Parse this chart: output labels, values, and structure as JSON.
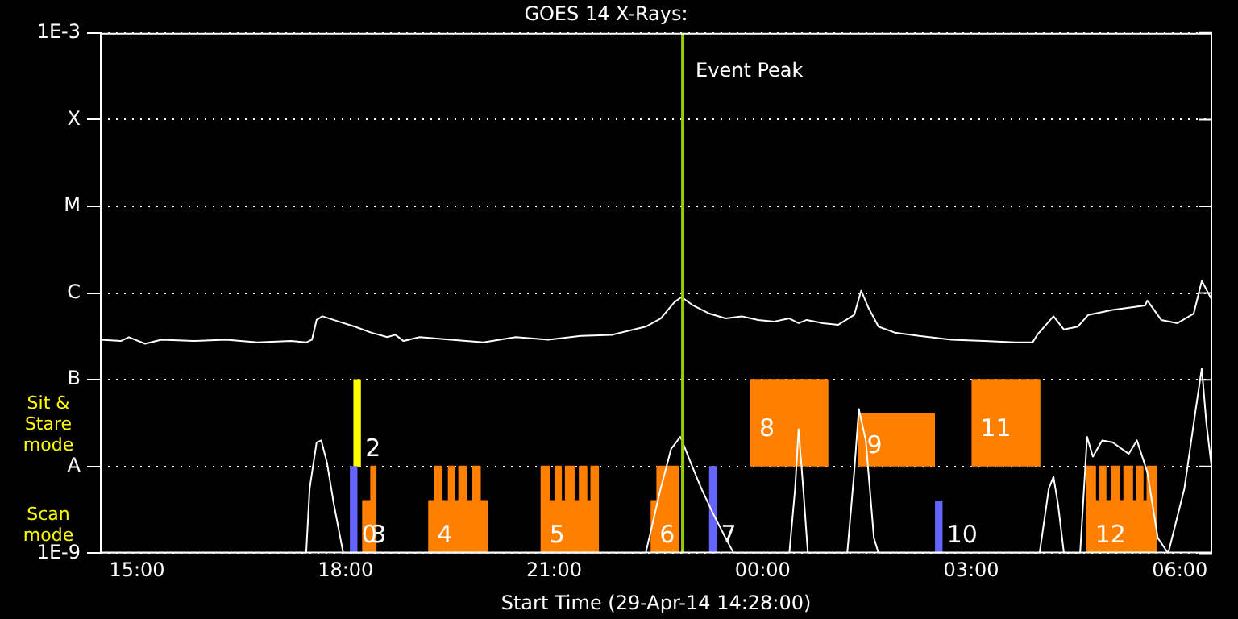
{
  "chart_data": {
    "type": "line",
    "title": "GOES 14 X-Rays:",
    "xlabel": "Start Time (29-Apr-14 14:28:00)",
    "xlim": [
      "--04-29T14:28",
      "--04-30T06:28"
    ],
    "xticks": [
      {
        "value": "--04-29T15:00",
        "label": "15:00"
      },
      {
        "value": "--04-29T18:00",
        "label": "18:00"
      },
      {
        "value": "--04-29T21:00",
        "label": "21:00"
      },
      {
        "value": "--04-30T00:00",
        "label": "00:00"
      },
      {
        "value": "--04-30T03:00",
        "label": "03:00"
      },
      {
        "value": "--04-30T06:00",
        "label": "06:00"
      }
    ],
    "ylim": [
      1e-09,
      0.001
    ],
    "yticks": [
      {
        "value": 1e-09,
        "label": "1E-9"
      },
      {
        "value": 1e-08,
        "label": "A"
      },
      {
        "value": 1e-07,
        "label": "B"
      },
      {
        "value": 1e-06,
        "label": "C"
      },
      {
        "value": 1e-05,
        "label": "M"
      },
      {
        "value": 0.0001,
        "label": "X"
      },
      {
        "value": 0.001,
        "label": "1E-3"
      }
    ],
    "log": true,
    "grid": "y",
    "series": [
      {
        "color": "#ffffff",
        "x": [
          "--04-29T14:28",
          "--04-29T14:46",
          "--04-29T14:53",
          "--04-29T15:07",
          "--04-29T15:21",
          "--04-29T15:49",
          "--04-29T16:17",
          "--04-29T16:44",
          "--04-29T17:13",
          "--04-29T17:26",
          "--04-29T17:31",
          "--04-29T17:35",
          "--04-29T17:40",
          "--04-29T17:54",
          "--04-29T18:08",
          "--04-29T18:22",
          "--04-29T18:36",
          "--04-29T18:43",
          "--04-29T18:50",
          "--04-29T19:04",
          "--04-29T19:31",
          "--04-29T19:59",
          "--04-29T20:27",
          "--04-29T20:55",
          "--04-29T21:23",
          "--04-29T21:50",
          "--04-29T22:19",
          "--04-29T22:32",
          "--04-29T22:44",
          "--04-29T22:50",
          "--04-29T23:00",
          "--04-29T23:14",
          "--04-29T23:28",
          "--04-29T23:42",
          "--04-29T23:56",
          "--04-30T00:10",
          "--04-30T00:23",
          "--04-30T00:31",
          "--04-30T00:38",
          "--04-30T00:52",
          "--04-30T01:05",
          "--04-30T01:19",
          "--04-30T01:25",
          "--04-30T01:31",
          "--04-30T01:40",
          "--04-30T01:54",
          "--04-30T02:15",
          "--04-30T02:43",
          "--04-30T03:11",
          "--04-30T03:38",
          "--04-30T03:53",
          "--04-30T03:57",
          "--04-30T04:11",
          "--04-30T04:20",
          "--04-30T04:32",
          "--04-30T04:41",
          "--04-30T05:02",
          "--04-30T05:30",
          "--04-30T05:32",
          "--04-30T05:44",
          "--04-30T05:58",
          "--04-30T06:12",
          "--04-30T06:19",
          "--04-30T06:28"
        ],
        "values": [
          2.9e-07,
          2.8e-07,
          3.1e-07,
          2.6e-07,
          2.9e-07,
          2.8e-07,
          2.9e-07,
          2.7e-07,
          2.8e-07,
          2.7e-07,
          2.9e-07,
          4.9e-07,
          5.4e-07,
          4.7e-07,
          4.1e-07,
          3.5e-07,
          3.1e-07,
          3.3e-07,
          2.8e-07,
          3.1e-07,
          2.9e-07,
          2.7e-07,
          3.1e-07,
          2.9e-07,
          3.2e-07,
          3.3e-07,
          4.1e-07,
          5.1e-07,
          7.9e-07,
          9e-07,
          7.2e-07,
          5.8e-07,
          5.1e-07,
          5.4e-07,
          4.9e-07,
          4.7e-07,
          5.1e-07,
          4.5e-07,
          4.9e-07,
          4.5e-07,
          4.3e-07,
          5.6e-07,
          1.07e-06,
          6.9e-07,
          4.1e-07,
          3.5e-07,
          3.2e-07,
          2.9e-07,
          2.8e-07,
          2.7e-07,
          2.7e-07,
          3.3e-07,
          5.4e-07,
          3.8e-07,
          4.1e-07,
          5.6e-07,
          6.4e-07,
          7.2e-07,
          8.2e-07,
          4.9e-07,
          4.5e-07,
          5.8e-07,
          1.38e-06,
          8.2e-07
        ]
      },
      {
        "color": "#ffffff",
        "x": [
          "--04-29T14:28",
          "--04-29T17:26",
          "--04-29T17:29",
          "--04-29T17:35",
          "--04-29T17:39",
          "--04-29T17:44",
          "--04-29T17:50",
          "--04-29T17:54",
          "--04-29T17:58",
          "--04-29T22:19",
          "--04-29T22:32",
          "--04-29T22:41",
          "--04-29T22:49",
          "--04-29T22:58",
          "--04-29T23:07",
          "--04-29T23:17",
          "--04-29T23:28",
          "--04-29T23:35",
          "--04-30T00:23",
          "--04-30T00:28",
          "--04-30T00:31",
          "--04-30T00:35",
          "--04-30T00:39",
          "--04-30T01:13",
          "--04-30T01:19",
          "--04-30T01:23",
          "--04-30T01:29",
          "--04-30T01:36",
          "--04-30T01:40",
          "--04-30T03:59",
          "--04-30T04:07",
          "--04-30T04:11",
          "--04-30T04:15",
          "--04-30T04:20",
          "--04-30T04:34",
          "--04-30T04:40",
          "--04-30T04:45",
          "--04-30T04:53",
          "--04-30T05:02",
          "--04-30T05:16",
          "--04-30T05:23",
          "--04-30T05:32",
          "--04-30T05:41",
          "--04-30T05:50",
          "--04-30T06:04",
          "--04-30T06:14",
          "--04-30T06:19",
          "--04-30T06:23",
          "--04-30T06:28"
        ],
        "values": [
          1e-09,
          1e-09,
          5.6e-09,
          1.9e-08,
          2e-08,
          1.1e-08,
          3.6e-09,
          1.9e-09,
          1e-09,
          1e-09,
          5.6e-09,
          1.6e-08,
          2.2e-08,
          1.1e-08,
          5.6e-09,
          2.9e-09,
          1.5e-09,
          1e-09,
          1e-09,
          5.6e-09,
          2.7e-08,
          5.6e-09,
          1e-09,
          1e-09,
          8.6e-09,
          4.6e-08,
          2e-08,
          1.5e-09,
          1e-09,
          1e-09,
          5.6e-09,
          7.6e-09,
          3.6e-09,
          1e-09,
          1e-09,
          2.2e-08,
          1.3e-08,
          2e-08,
          1.9e-08,
          1.4e-08,
          2e-08,
          8.6e-09,
          1.5e-09,
          1e-09,
          5.6e-09,
          4.8e-08,
          1.35e-07,
          3.1e-08,
          8.6e-09
        ]
      },
      {
        "type": "area",
        "color": "#ff8000",
        "x": [
          "--04-29T18:15",
          "--04-29T18:15",
          "--04-29T18:22",
          "--04-29T18:22",
          "--04-29T18:26",
          "--04-29T18:26",
          "--04-29T19:12",
          "--04-29T19:12",
          "--04-29T19:17",
          "--04-29T19:17",
          "--04-29T19:23",
          "--04-29T19:23",
          "--04-29T19:29",
          "--04-29T19:29",
          "--04-29T19:34",
          "--04-29T19:34",
          "--04-29T19:38",
          "--04-29T19:38",
          "--04-29T19:44",
          "--04-29T19:44",
          "--04-29T19:50",
          "--04-29T19:50",
          "--04-29T19:56",
          "--04-29T19:56",
          "--04-29T20:02",
          "--04-29T20:02",
          "--04-29T20:49",
          "--04-29T20:49",
          "--04-29T20:56",
          "--04-29T20:56",
          "--04-29T21:01",
          "--04-29T21:01",
          "--04-29T21:06",
          "--04-29T21:06",
          "--04-29T21:10",
          "--04-29T21:10",
          "--04-29T21:17",
          "--04-29T21:17",
          "--04-29T21:22",
          "--04-29T21:22",
          "--04-29T21:28",
          "--04-29T21:28",
          "--04-29T21:32",
          "--04-29T21:32",
          "--04-29T21:38",
          "--04-29T21:38",
          "--04-29T22:24",
          "--04-29T22:24",
          "--04-29T22:29",
          "--04-29T22:29",
          "--04-29T22:47",
          "--04-29T22:47",
          "--04-30T04:40",
          "--04-30T04:40",
          "--04-30T04:47",
          "--04-30T04:47",
          "--04-30T04:51",
          "--04-30T04:51",
          "--04-30T04:56",
          "--04-30T04:56",
          "--04-30T05:01",
          "--04-30T05:01",
          "--04-30T05:08",
          "--04-30T05:08",
          "--04-30T05:12",
          "--04-30T05:12",
          "--04-30T05:19",
          "--04-30T05:19",
          "--04-30T05:23",
          "--04-30T05:23",
          "--04-30T05:28",
          "--04-30T05:28",
          "--04-30T05:32",
          "--04-30T05:32",
          "--04-30T05:40",
          "--04-30T05:40"
        ],
        "values": [
          1e-09,
          4e-09,
          4e-09,
          1e-08,
          1e-08,
          1e-09,
          1e-09,
          4e-09,
          4e-09,
          1e-08,
          1e-08,
          4e-09,
          4e-09,
          1e-08,
          1e-08,
          4e-09,
          4e-09,
          1e-08,
          1e-08,
          4e-09,
          4e-09,
          1e-08,
          1e-08,
          4e-09,
          4e-09,
          1e-09,
          1e-09,
          1e-08,
          1e-08,
          4e-09,
          4e-09,
          1e-08,
          1e-08,
          4e-09,
          4e-09,
          1e-08,
          1e-08,
          4e-09,
          4e-09,
          1e-08,
          1e-08,
          4e-09,
          4e-09,
          1e-08,
          1e-08,
          1e-09,
          1e-09,
          4e-09,
          4e-09,
          1e-08,
          1e-08,
          1e-09,
          1e-09,
          1e-08,
          1e-08,
          4e-09,
          4e-09,
          1e-08,
          1e-08,
          4e-09,
          4e-09,
          1e-08,
          1e-08,
          4e-09,
          4e-09,
          1e-08,
          1e-08,
          4e-09,
          4e-09,
          1e-08,
          1e-08,
          4e-09,
          4e-09,
          1e-08,
          1e-08,
          1e-09
        ]
      },
      {
        "type": "area",
        "color": "#ff8000",
        "x": [
          "--04-29T23:50",
          "--04-29T23:50",
          "--04-30T00:56",
          "--04-30T00:56",
          "--04-30T01:23",
          "--04-30T01:23",
          "--04-30T02:28",
          "--04-30T02:28",
          "--04-30T03:01",
          "--04-30T03:01",
          "--04-30T03:59",
          "--04-30T03:59"
        ],
        "values": [
          1e-08,
          1e-07,
          1e-07,
          1e-08,
          1e-08,
          4e-08,
          4e-08,
          1e-08,
          1e-08,
          1e-07,
          1e-07,
          1e-08
        ]
      },
      {
        "type": "bar",
        "color": "#6464ff",
        "x": [
          "--04-29T18:07",
          "--04-29T23:17",
          "--04-30T02:32"
        ],
        "base": [
          1e-09,
          1e-09,
          1e-09
        ],
        "values": [
          9e-09,
          9e-09,
          3e-09
        ]
      },
      {
        "type": "bar",
        "color": "#ffff00",
        "x": [
          "--04-29T18:10"
        ],
        "base": [
          1e-08
        ],
        "values": [
          9e-08
        ]
      }
    ],
    "ref_lines": [
      {
        "axis": "x",
        "value": "--04-29T22:51",
        "label": "Event Peak",
        "color": "#99cc00"
      }
    ],
    "annotations": [
      "Sit & Stare mode",
      "Scan mode",
      {
        "text": "0",
        "x": "--04-29T18:07",
        "y": 1e-09
      },
      {
        "text": "2",
        "x": "--04-29T18:10",
        "y": 1e-08
      },
      {
        "text": "3",
        "x": "--04-29T18:15",
        "y": 1e-09
      },
      {
        "text": "4",
        "x": "--04-29T19:12",
        "y": 1e-09
      },
      {
        "text": "5",
        "x": "--04-29T20:49",
        "y": 1e-09
      },
      {
        "text": "6",
        "x": "--04-29T22:24",
        "y": 1e-09
      },
      {
        "text": "7",
        "x": "--04-29T23:17",
        "y": 1e-09
      },
      {
        "text": "8",
        "x": "--04-29T23:50",
        "y": 1e-07
      },
      {
        "text": "9",
        "x": "--04-30T01:23",
        "y": 4e-08
      },
      {
        "text": "10",
        "x": "--04-30T02:32",
        "y": 1e-09
      },
      {
        "text": "11",
        "x": "--04-30T03:01",
        "y": 1e-07
      },
      {
        "text": "12",
        "x": "--04-30T04:40",
        "y": 1e-09
      }
    ]
  }
}
